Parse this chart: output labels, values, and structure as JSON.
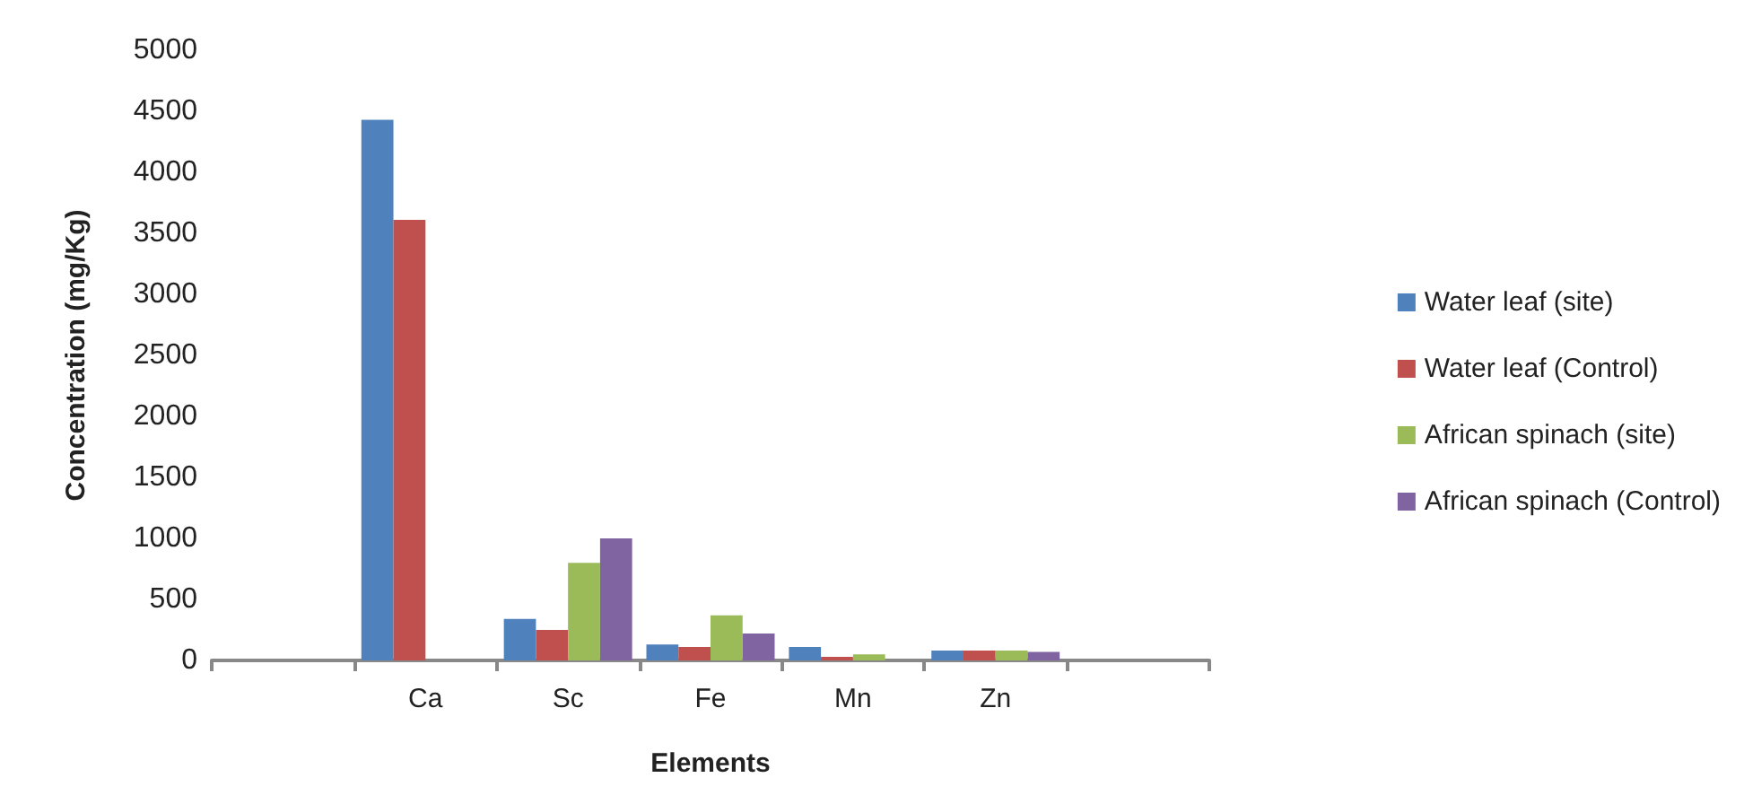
{
  "chart_data": {
    "type": "bar",
    "xlabel": "Elements",
    "ylabel": "Concentration (mg/Kg)",
    "categories": [
      null,
      "Ca",
      "Sc",
      "Fe",
      "Mn",
      "Zn",
      null
    ],
    "series": [
      {
        "name": "Water leaf (site)",
        "color": "#4f81bd",
        "values": [
          null,
          4430,
          340,
          130,
          110,
          80,
          null
        ]
      },
      {
        "name": "Water leaf (Control)",
        "color": "#c0504d",
        "values": [
          null,
          3610,
          250,
          110,
          30,
          80,
          null
        ]
      },
      {
        "name": "African spinach (site)",
        "color": "#9bbb59",
        "values": [
          null,
          null,
          800,
          370,
          50,
          80,
          null
        ]
      },
      {
        "name": "African spinach (Control)",
        "color": "#8064a2",
        "values": [
          null,
          null,
          1000,
          220,
          null,
          70,
          null
        ]
      }
    ],
    "ylim": [
      0,
      5000
    ],
    "yticks": [
      0,
      500,
      1000,
      1500,
      2000,
      2500,
      3000,
      3500,
      4000,
      4500,
      5000
    ],
    "grid": false,
    "legend": "right"
  }
}
